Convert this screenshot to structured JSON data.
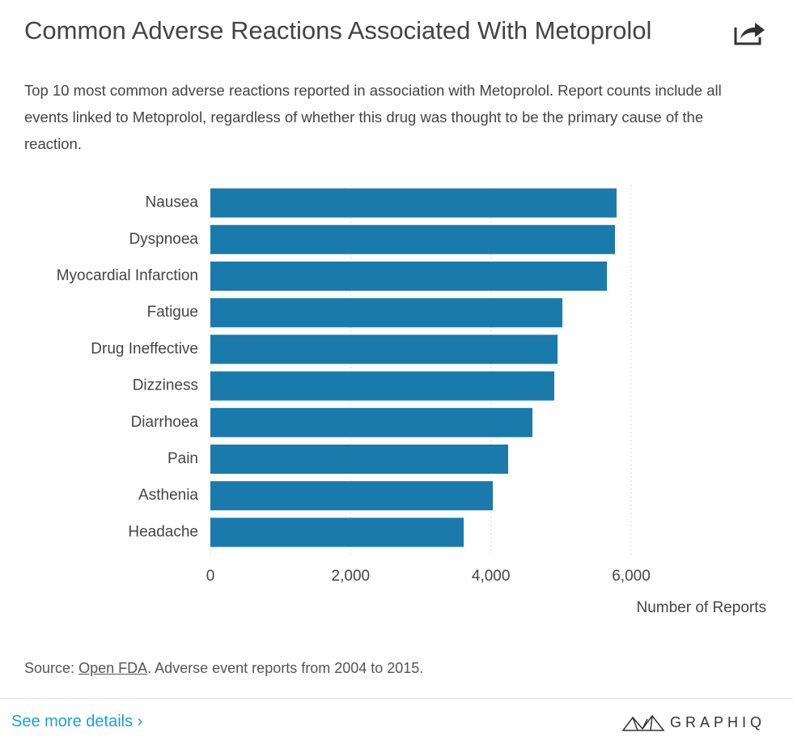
{
  "chart_data": {
    "type": "bar",
    "orientation": "horizontal",
    "title": "Common Adverse Reactions Associated With Metoprolol",
    "subtitle": "Top 10 most common adverse reactions reported in association with Metoprolol. Report counts include all events linked to Metoprolol, regardless of whether this drug was thought to be the primary cause of the reaction.",
    "categories": [
      "Nausea",
      "Dyspnoea",
      "Myocardial Infarction",
      "Fatigue",
      "Drug Ineffective",
      "Dizziness",
      "Diarrhoea",
      "Pain",
      "Asthenia",
      "Headache"
    ],
    "values": [
      5792,
      5769,
      5654,
      5019,
      4950,
      4904,
      4592,
      4246,
      4027,
      3612
    ],
    "color": "#1a7aab",
    "xlim": [
      0,
      6000
    ],
    "xticks": [
      0,
      {
        "value": 2000,
        "label": "2,000"
      },
      {
        "value": 4000,
        "label": "4,000"
      },
      {
        "value": 6000,
        "label": "6,000"
      }
    ],
    "x_label": "Number of Reports",
    "grid": true
  },
  "source": {
    "prefix": "Source:",
    "link": "Open FDA",
    "text": ". Adverse event reports from 2004 to 2015."
  },
  "footer": {
    "link": "See more details ›",
    "brand": "GRAPHIQ"
  }
}
